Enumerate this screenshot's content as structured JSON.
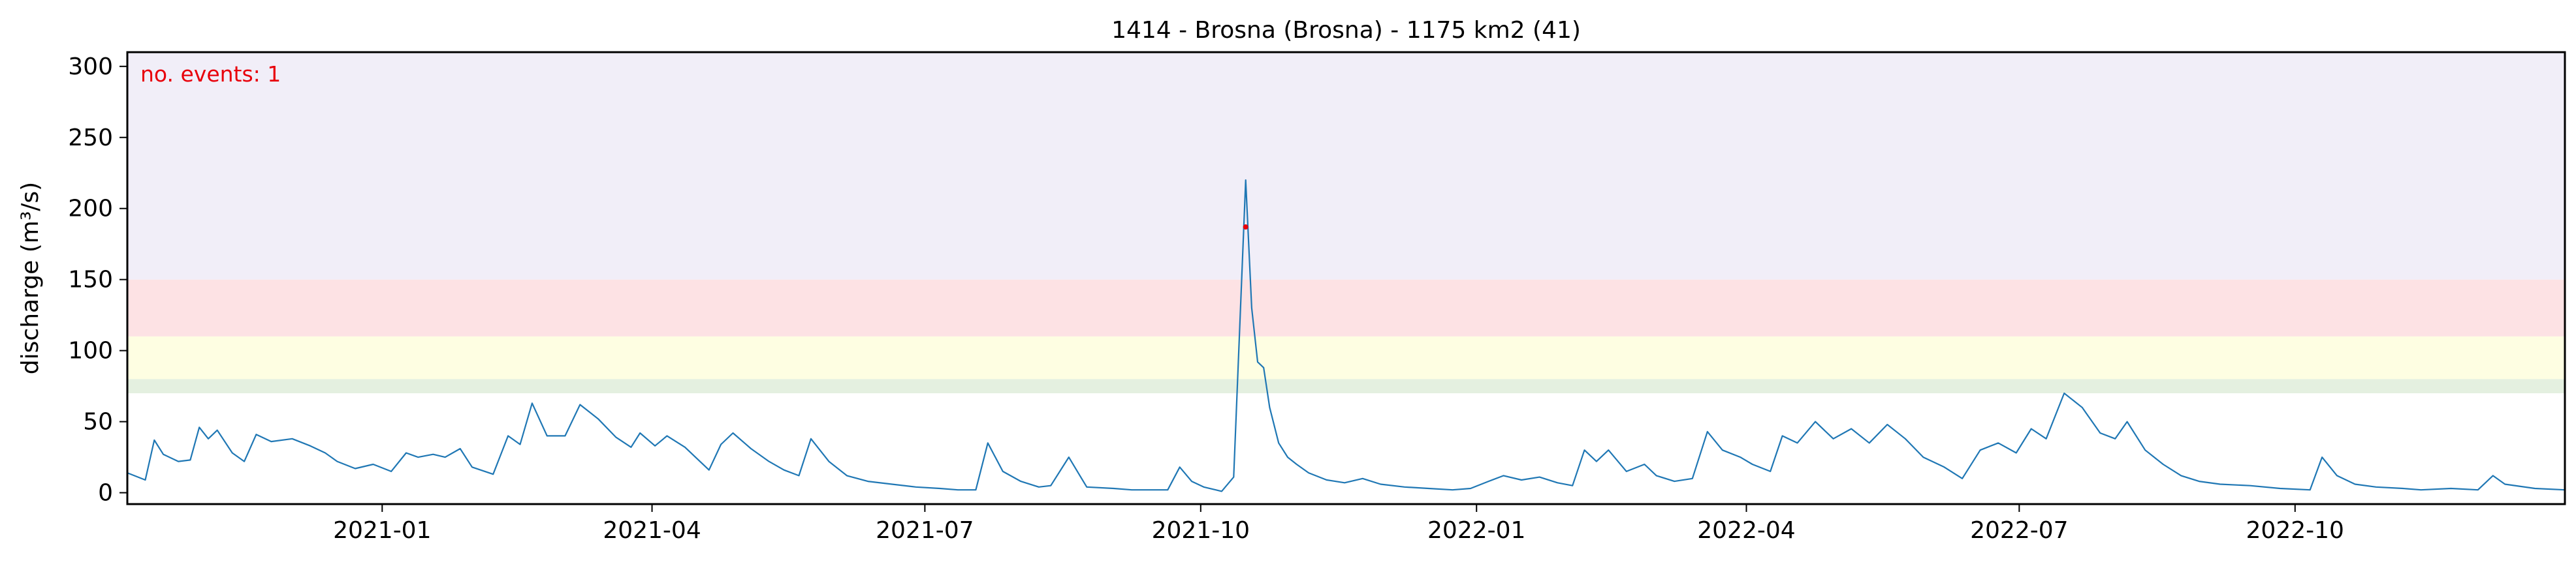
{
  "chart_data": {
    "type": "line",
    "title": "1414 - Brosna (Brosna) - 1175 km2 (41)",
    "xlabel": "",
    "ylabel": "discharge (m³/s)",
    "xlim": [
      "2020-10-08",
      "2022-12-30"
    ],
    "ylim": [
      -8,
      310
    ],
    "y_ticks": [
      0,
      50,
      100,
      150,
      200,
      250,
      300
    ],
    "x_ticks": [
      "2021-01-01",
      "2021-04-01",
      "2021-07-01",
      "2021-10-01",
      "2022-01-01",
      "2022-04-01",
      "2022-07-01",
      "2022-10-01"
    ],
    "x_tick_labels": [
      "2021-01",
      "2021-04",
      "2021-07",
      "2021-10",
      "2022-01",
      "2022-04",
      "2022-07",
      "2022-10"
    ],
    "bands": [
      {
        "from": 70,
        "to": 80,
        "color": "#e4f0e0"
      },
      {
        "from": 80,
        "to": 110,
        "color": "#fefee2"
      },
      {
        "from": 110,
        "to": 150,
        "color": "#fde2e4"
      },
      {
        "from": 150,
        "to": 310,
        "color": "#f1eef8"
      }
    ],
    "annotation": {
      "text": "no. events: 1",
      "color": "#e8000b",
      "position": "top-left"
    },
    "series": [
      {
        "color": "#1f77b4",
        "points": [
          [
            "2020-10-08",
            14
          ],
          [
            "2020-10-14",
            9
          ],
          [
            "2020-10-17",
            37
          ],
          [
            "2020-10-20",
            27
          ],
          [
            "2020-10-25",
            22
          ],
          [
            "2020-10-29",
            23
          ],
          [
            "2020-11-01",
            46
          ],
          [
            "2020-11-04",
            38
          ],
          [
            "2020-11-07",
            44
          ],
          [
            "2020-11-12",
            28
          ],
          [
            "2020-11-16",
            22
          ],
          [
            "2020-11-20",
            41
          ],
          [
            "2020-11-25",
            36
          ],
          [
            "2020-12-02",
            38
          ],
          [
            "2020-12-08",
            33
          ],
          [
            "2020-12-13",
            28
          ],
          [
            "2020-12-17",
            22
          ],
          [
            "2020-12-23",
            17
          ],
          [
            "2020-12-29",
            20
          ],
          [
            "2021-01-04",
            15
          ],
          [
            "2021-01-09",
            28
          ],
          [
            "2021-01-13",
            25
          ],
          [
            "2021-01-18",
            27
          ],
          [
            "2021-01-22",
            25
          ],
          [
            "2021-01-27",
            31
          ],
          [
            "2021-01-31",
            18
          ],
          [
            "2021-02-07",
            13
          ],
          [
            "2021-02-12",
            40
          ],
          [
            "2021-02-16",
            34
          ],
          [
            "2021-02-20",
            63
          ],
          [
            "2021-02-25",
            40
          ],
          [
            "2021-03-03",
            40
          ],
          [
            "2021-03-08",
            62
          ],
          [
            "2021-03-14",
            52
          ],
          [
            "2021-03-20",
            39
          ],
          [
            "2021-03-25",
            32
          ],
          [
            "2021-03-28",
            42
          ],
          [
            "2021-04-02",
            33
          ],
          [
            "2021-04-06",
            40
          ],
          [
            "2021-04-12",
            32
          ],
          [
            "2021-04-20",
            16
          ],
          [
            "2021-04-24",
            34
          ],
          [
            "2021-04-28",
            42
          ],
          [
            "2021-05-04",
            31
          ],
          [
            "2021-05-10",
            22
          ],
          [
            "2021-05-15",
            16
          ],
          [
            "2021-05-20",
            12
          ],
          [
            "2021-05-24",
            38
          ],
          [
            "2021-05-30",
            22
          ],
          [
            "2021-06-05",
            12
          ],
          [
            "2021-06-12",
            8
          ],
          [
            "2021-06-20",
            6
          ],
          [
            "2021-06-28",
            4
          ],
          [
            "2021-07-06",
            3
          ],
          [
            "2021-07-12",
            2
          ],
          [
            "2021-07-18",
            2
          ],
          [
            "2021-07-22",
            35
          ],
          [
            "2021-07-27",
            15
          ],
          [
            "2021-08-02",
            8
          ],
          [
            "2021-08-08",
            4
          ],
          [
            "2021-08-12",
            5
          ],
          [
            "2021-08-18",
            25
          ],
          [
            "2021-08-24",
            4
          ],
          [
            "2021-09-02",
            3
          ],
          [
            "2021-09-08",
            2
          ],
          [
            "2021-09-14",
            2
          ],
          [
            "2021-09-20",
            2
          ],
          [
            "2021-09-24",
            18
          ],
          [
            "2021-09-28",
            8
          ],
          [
            "2021-10-02",
            4
          ],
          [
            "2021-10-06",
            2
          ],
          [
            "2021-10-08",
            1
          ],
          [
            "2021-10-12",
            11
          ],
          [
            "2021-10-16",
            220
          ],
          [
            "2021-10-18",
            130
          ],
          [
            "2021-10-20",
            92
          ],
          [
            "2021-10-22",
            88
          ],
          [
            "2021-10-24",
            60
          ],
          [
            "2021-10-27",
            35
          ],
          [
            "2021-10-30",
            25
          ],
          [
            "2021-11-02",
            20
          ],
          [
            "2021-11-06",
            14
          ],
          [
            "2021-11-12",
            9
          ],
          [
            "2021-11-18",
            7
          ],
          [
            "2021-11-24",
            10
          ],
          [
            "2021-11-30",
            6
          ],
          [
            "2021-12-08",
            4
          ],
          [
            "2021-12-16",
            3
          ],
          [
            "2021-12-24",
            2
          ],
          [
            "2021-12-30",
            3
          ],
          [
            "2022-01-05",
            8
          ],
          [
            "2022-01-10",
            12
          ],
          [
            "2022-01-16",
            9
          ],
          [
            "2022-01-22",
            11
          ],
          [
            "2022-01-28",
            7
          ],
          [
            "2022-02-02",
            5
          ],
          [
            "2022-02-06",
            30
          ],
          [
            "2022-02-10",
            22
          ],
          [
            "2022-02-14",
            30
          ],
          [
            "2022-02-20",
            15
          ],
          [
            "2022-02-26",
            20
          ],
          [
            "2022-03-02",
            12
          ],
          [
            "2022-03-08",
            8
          ],
          [
            "2022-03-14",
            10
          ],
          [
            "2022-03-19",
            43
          ],
          [
            "2022-03-24",
            30
          ],
          [
            "2022-03-30",
            25
          ],
          [
            "2022-04-03",
            20
          ],
          [
            "2022-04-09",
            15
          ],
          [
            "2022-04-13",
            40
          ],
          [
            "2022-04-18",
            35
          ],
          [
            "2022-04-24",
            50
          ],
          [
            "2022-04-30",
            38
          ],
          [
            "2022-05-06",
            45
          ],
          [
            "2022-05-12",
            35
          ],
          [
            "2022-05-18",
            48
          ],
          [
            "2022-05-24",
            38
          ],
          [
            "2022-05-30",
            25
          ],
          [
            "2022-06-06",
            18
          ],
          [
            "2022-06-12",
            10
          ],
          [
            "2022-06-18",
            30
          ],
          [
            "2022-06-24",
            35
          ],
          [
            "2022-06-30",
            28
          ],
          [
            "2022-07-05",
            45
          ],
          [
            "2022-07-10",
            38
          ],
          [
            "2022-07-16",
            70
          ],
          [
            "2022-07-22",
            60
          ],
          [
            "2022-07-28",
            42
          ],
          [
            "2022-08-02",
            38
          ],
          [
            "2022-08-06",
            50
          ],
          [
            "2022-08-12",
            30
          ],
          [
            "2022-08-18",
            20
          ],
          [
            "2022-08-24",
            12
          ],
          [
            "2022-08-30",
            8
          ],
          [
            "2022-09-06",
            6
          ],
          [
            "2022-09-16",
            5
          ],
          [
            "2022-09-26",
            3
          ],
          [
            "2022-10-06",
            2
          ],
          [
            "2022-10-10",
            25
          ],
          [
            "2022-10-15",
            12
          ],
          [
            "2022-10-21",
            6
          ],
          [
            "2022-10-28",
            4
          ],
          [
            "2022-11-06",
            3
          ],
          [
            "2022-11-12",
            2
          ],
          [
            "2022-11-22",
            3
          ],
          [
            "2022-12-01",
            2
          ],
          [
            "2022-12-06",
            12
          ],
          [
            "2022-12-10",
            6
          ],
          [
            "2022-12-20",
            3
          ],
          [
            "2022-12-30",
            2
          ]
        ]
      }
    ]
  }
}
